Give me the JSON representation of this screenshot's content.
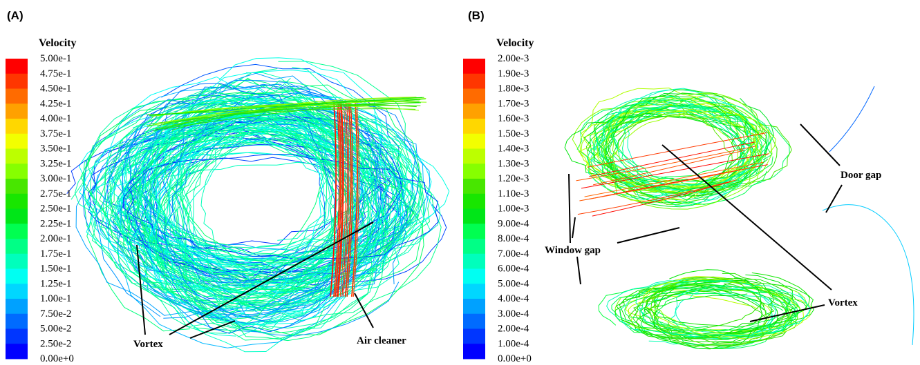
{
  "panels": [
    {
      "label": "(A)",
      "legend_title": "Velocity",
      "legend_labels": [
        "5.00e-1",
        "4.75e-1",
        "4.50e-1",
        "4.25e-1",
        "4.00e-1",
        "3.75e-1",
        "3.50e-1",
        "3.25e-1",
        "3.00e-1",
        "2.75e-1",
        "2.50e-1",
        "2.25e-1",
        "2.00e-1",
        "1.75e-1",
        "1.50e-1",
        "1.25e-1",
        "1.00e-1",
        "7.50e-2",
        "5.00e-2",
        "2.50e-2",
        "0.00e+0"
      ],
      "annotations": [
        "Vortex",
        "Air cleaner"
      ]
    },
    {
      "label": "(B)",
      "legend_title": "Velocity",
      "legend_labels": [
        "2.00e-3",
        "1.90e-3",
        "1.80e-3",
        "1.70e-3",
        "1.60e-3",
        "1.50e-3",
        "1.40e-3",
        "1.30e-3",
        "1.20e-3",
        "1.10e-3",
        "1.00e-3",
        "9.00e-4",
        "8.00e-4",
        "7.00e-4",
        "6.00e-4",
        "5.00e-4",
        "4.00e-4",
        "3.00e-4",
        "2.00e-4",
        "1.00e-4",
        "0.00e+0"
      ],
      "annotations": [
        "Door gap",
        "Window gap",
        "Vortex"
      ]
    }
  ]
}
